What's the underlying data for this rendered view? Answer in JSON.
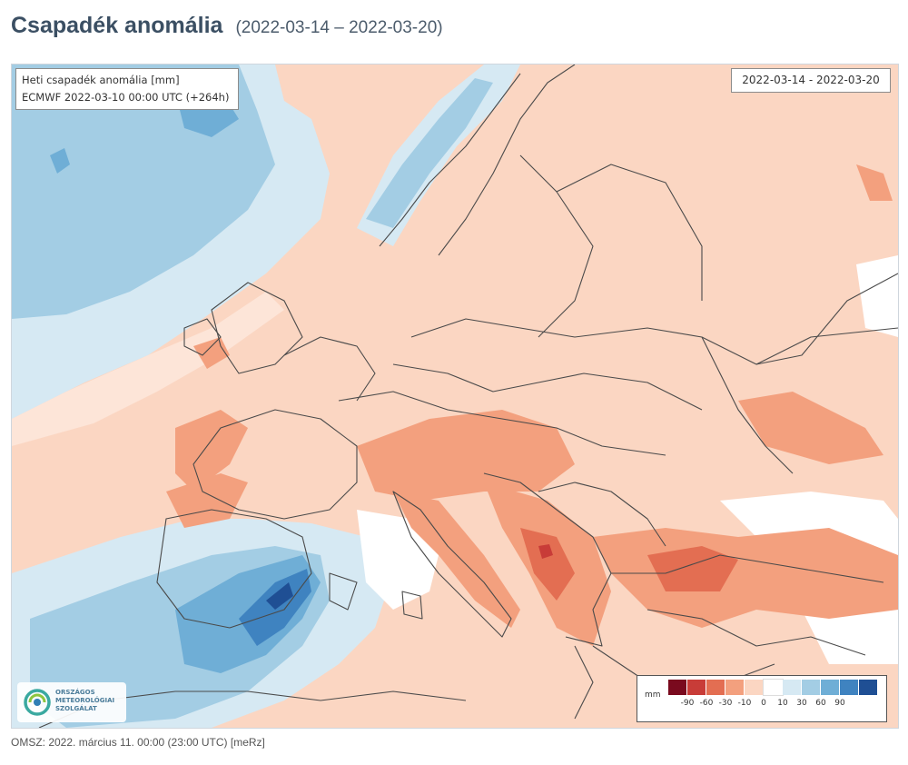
{
  "header": {
    "title": "Csapadék anomália",
    "date_range": "(2022-03-14 – 2022-03-20)"
  },
  "map": {
    "info_line1": "Heti csapadék anomália [mm]",
    "info_line2": "ECMWF 2022-03-10 00:00 UTC (+264h)",
    "period_label": "2022-03-14 - 2022-03-20",
    "colors": {
      "background_dry": "#fbd6c2",
      "dry_moderate": "#f3a07e",
      "dry_strong": "#e36e52",
      "dry_extreme": "#c83c38",
      "neutral": "#ffffff",
      "wet_light": "#d6e9f3",
      "wet_moderate": "#a3cde4",
      "wet_strong": "#6faed6",
      "wet_heavy": "#3f83c0",
      "wet_extreme": "#1f4f94",
      "borders": "#4a4a4a"
    }
  },
  "legend": {
    "unit": "mm",
    "colors": [
      "#7a0a1e",
      "#c83c38",
      "#e36e52",
      "#f3a07e",
      "#fbd6c2",
      "#ffffff",
      "#d6e9f3",
      "#a3cde4",
      "#6faed6",
      "#3f83c0",
      "#1f4f94"
    ],
    "ticks": [
      "-90",
      "-60",
      "-30",
      "-10",
      "0",
      "10",
      "30",
      "60",
      "90"
    ]
  },
  "logo": {
    "text": "ORSZÁGOS METEOROLÓGIAI SZOLGÁLAT"
  },
  "footer": {
    "text": "OMSZ: 2022. március 11. 00:00 (23:00  UTC)  [meRz]"
  }
}
